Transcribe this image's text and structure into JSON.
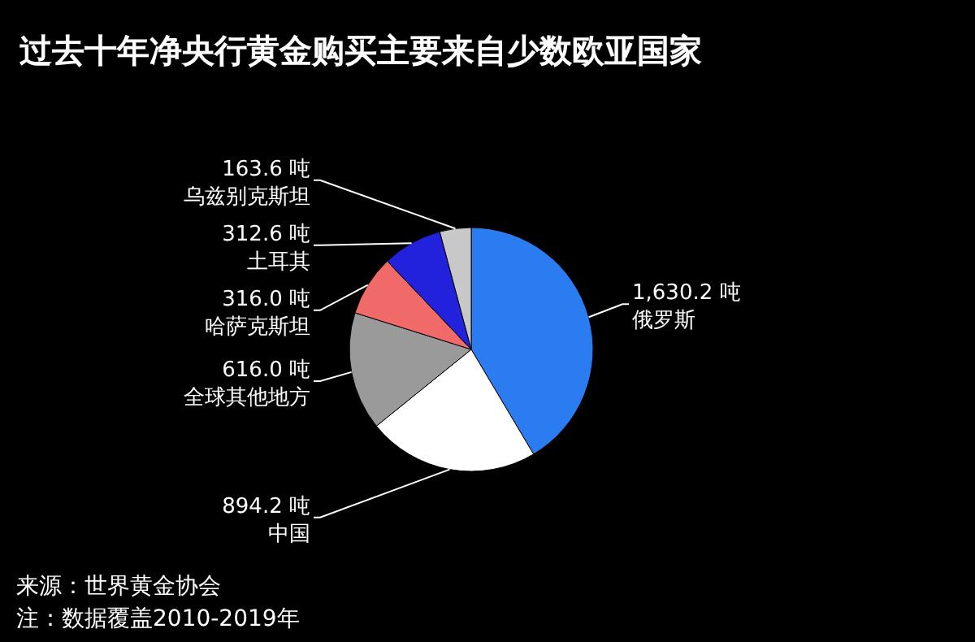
{
  "chart_data": {
    "type": "pie",
    "title": "过去十年净央行黄金购买主要来自少数欧亚国家",
    "categories": [
      "俄罗斯",
      "中国",
      "全球其他地方",
      "哈萨克斯坦",
      "土耳其",
      "乌兹别克斯坦"
    ],
    "values": [
      1630.2,
      894.2,
      616.0,
      316.0,
      312.6,
      163.6
    ],
    "colors": [
      "#2b7cf0",
      "#ffffff",
      "#9a9a9a",
      "#f06a6a",
      "#2222dd",
      "#c8c8c8"
    ],
    "value_labels": [
      "1,630.2 吨",
      "894.2 吨",
      "616.0 吨",
      "316.0 吨",
      "312.6 吨",
      "163.6 吨"
    ],
    "annotations": [
      "来源：世界黄金协会",
      "注：数据覆盖2010-2019年"
    ]
  }
}
